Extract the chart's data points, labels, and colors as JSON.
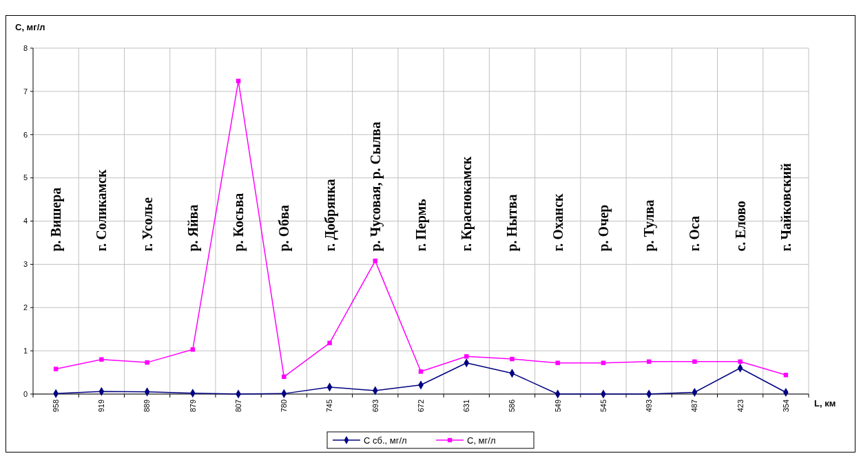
{
  "chart_data": {
    "type": "line",
    "xlabel": "L, км",
    "ylabel": "С, мг/л",
    "categories": [
      "958",
      "919",
      "889",
      "879",
      "807",
      "780",
      "745",
      "693",
      "672",
      "631",
      "586",
      "549",
      "545",
      "493",
      "487",
      "423",
      "354"
    ],
    "series": [
      {
        "name": "С сб., мг/л",
        "color": "#000080",
        "marker": "diamond",
        "values": [
          0.01,
          0.06,
          0.05,
          0.02,
          0,
          0.01,
          0.16,
          0.08,
          0.21,
          0.72,
          0.48,
          0,
          0,
          0,
          0.04,
          0.6,
          0.04
        ]
      },
      {
        "name": "С, мг/л",
        "color": "#ff00ff",
        "marker": "square",
        "values": [
          0.58,
          0.8,
          0.73,
          1.03,
          7.24,
          0.4,
          1.18,
          3.08,
          0.52,
          0.87,
          0.81,
          0.72,
          0.72,
          0.75,
          0.75,
          0.75,
          0.44
        ]
      }
    ],
    "ylim": [
      0,
      8
    ],
    "yticks": [
      0,
      1,
      2,
      3,
      4,
      5,
      6,
      7,
      8
    ],
    "grid": true,
    "legend": "bottom",
    "line_style": "solid",
    "annotations": [
      "р. Вишера",
      "г. Соликамск",
      "г. Усолье",
      "р. Яйва",
      "р. Косьва",
      "р. Обва",
      "г. Добрянка",
      "р. Чусовая, р. Сылва",
      "г. Пермь",
      "г. Краснокамск",
      "р. Нытва",
      "г. Оханск",
      "р. Очер",
      "р. Тулва",
      "г. Оса",
      "с. Елово",
      "г. Чайковский"
    ]
  }
}
